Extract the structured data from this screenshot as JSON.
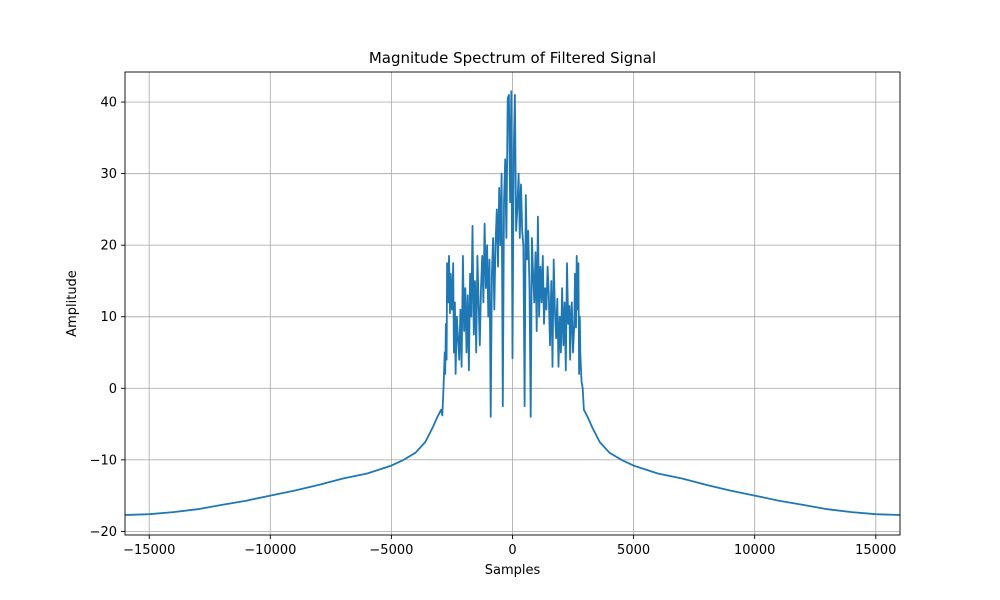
{
  "chart_data": {
    "type": "line",
    "title": "Magnitude Spectrum of Filtered Signal",
    "xlabel": "Samples",
    "ylabel": "Amplitude",
    "xlim": [
      -16000,
      16000
    ],
    "ylim": [
      -20.5,
      44.2
    ],
    "xticks": [
      -15000,
      -10000,
      -5000,
      0,
      5000,
      10000,
      15000
    ],
    "xtick_labels": [
      "−15000",
      "−10000",
      "−5000",
      "0",
      "5000",
      "10000",
      "15000"
    ],
    "yticks": [
      -20,
      -10,
      0,
      10,
      20,
      30,
      40
    ],
    "ytick_labels": [
      "−20",
      "−10",
      "0",
      "10",
      "20",
      "30",
      "40"
    ],
    "grid": true,
    "legend": "none",
    "series": [
      {
        "color": "#1f77b4",
        "x": [
          -16000,
          -15000,
          -14000,
          -13000,
          -12000,
          -11000,
          -10000,
          -9000,
          -8000,
          -7000,
          -6000,
          -5000,
          -4500,
          -4000,
          -3600,
          -3300,
          -3100,
          -2950,
          -2900,
          -2850,
          -2800,
          -2780,
          -2750,
          -2720,
          -2700,
          -2650,
          -2620,
          -2580,
          -2550,
          -2500,
          -2450,
          -2420,
          -2380,
          -2350,
          -2300,
          -2250,
          -2200,
          -2150,
          -2100,
          -2050,
          -2000,
          -1950,
          -1900,
          -1850,
          -1800,
          -1750,
          -1700,
          -1650,
          -1600,
          -1550,
          -1500,
          -1450,
          -1400,
          -1350,
          -1300,
          -1250,
          -1200,
          -1150,
          -1100,
          -1050,
          -1000,
          -950,
          -900,
          -850,
          -800,
          -750,
          -700,
          -650,
          -600,
          -550,
          -500,
          -450,
          -400,
          -350,
          -300,
          -250,
          -200,
          -150,
          -100,
          -50,
          0,
          50,
          100,
          150,
          200,
          250,
          300,
          350,
          400,
          450,
          500,
          550,
          600,
          650,
          700,
          750,
          800,
          850,
          900,
          950,
          1000,
          1050,
          1100,
          1150,
          1200,
          1250,
          1300,
          1350,
          1400,
          1450,
          1500,
          1550,
          1600,
          1650,
          1700,
          1750,
          1800,
          1850,
          1900,
          1950,
          2000,
          2050,
          2100,
          2150,
          2200,
          2250,
          2300,
          2350,
          2380,
          2420,
          2450,
          2500,
          2550,
          2580,
          2620,
          2650,
          2700,
          2720,
          2750,
          2780,
          2800,
          2850,
          2900,
          2950,
          3100,
          3300,
          3600,
          4000,
          4500,
          5000,
          6000,
          7000,
          8000,
          9000,
          10000,
          11000,
          12000,
          13000,
          14000,
          15000,
          16000
        ],
        "y": [
          -17.7,
          -17.6,
          -17.3,
          -16.9,
          -16.3,
          -15.7,
          -15.0,
          -14.3,
          -13.5,
          -12.6,
          -11.9,
          -10.8,
          -10.0,
          -9.0,
          -7.5,
          -5.5,
          -4.0,
          -3.0,
          -3.8,
          0.0,
          5.0,
          2.0,
          9.0,
          4.0,
          17.5,
          12.0,
          18.5,
          10.5,
          16.0,
          11.0,
          17.5,
          5.0,
          12.0,
          2.0,
          10.0,
          7.0,
          4.0,
          11.0,
          3.0,
          18.5,
          8.0,
          14.0,
          5.0,
          13.0,
          2.5,
          16.0,
          10.0,
          22.7,
          7.5,
          15.0,
          5.0,
          18.5,
          12.0,
          6.0,
          14.0,
          18.5,
          12.0,
          23.0,
          14.0,
          20.0,
          10.0,
          18.0,
          -4.0,
          16.0,
          21.0,
          11.0,
          20.0,
          25.0,
          17.0,
          28.0,
          20.0,
          30.0,
          -2.5,
          26.0,
          32.0,
          21.0,
          40.5,
          41.0,
          26.0,
          41.5,
          4.2,
          33.0,
          41.0,
          22.0,
          25.0,
          30.0,
          21.0,
          28.5,
          22.0,
          20.0,
          -2.5,
          27.0,
          18.0,
          22.0,
          14.0,
          -4.0,
          21.0,
          16.0,
          12.0,
          19.0,
          8.0,
          24.0,
          10.0,
          17.0,
          12.0,
          18.5,
          9.0,
          14.0,
          11.0,
          17.0,
          13.0,
          6.0,
          15.0,
          3.0,
          18.0,
          11.0,
          7.0,
          12.5,
          3.0,
          10.0,
          5.0,
          14.0,
          6.0,
          12.0,
          2.5,
          17.5,
          9.0,
          11.5,
          4.0,
          10.0,
          12.0,
          5.0,
          9.0,
          16.0,
          8.5,
          18.5,
          11.0,
          17.5,
          2.0,
          10.0,
          5.0,
          1.0,
          0.0,
          -3.0,
          -4.0,
          -5.5,
          -7.5,
          -9.0,
          -10.0,
          -10.8,
          -11.9,
          -12.6,
          -13.5,
          -14.3,
          -15.0,
          -15.7,
          -16.3,
          -16.9,
          -17.3,
          -17.6,
          -17.7
        ]
      }
    ]
  }
}
